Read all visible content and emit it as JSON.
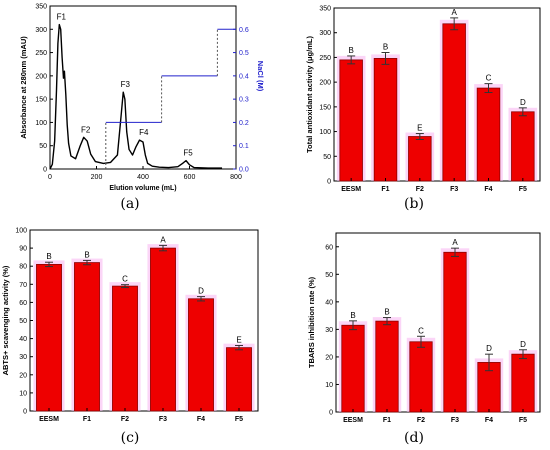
{
  "colors": {
    "bar": "#ee0000",
    "bar_edge": "#8b0000",
    "err": "#333333",
    "glow": "#f7b2f0",
    "axis": "#000000",
    "nacl": "#2222cc"
  },
  "panels": [
    {
      "label": "(a)"
    },
    {
      "label": "(b)"
    },
    {
      "label": "(c)"
    },
    {
      "label": "(d)"
    }
  ],
  "chart_data": [
    {
      "type": "line",
      "xlabel": "Elution volume (mL)",
      "ylabel": "Absorbance at 280nm (mAU)",
      "y2label": "NaCl (M)",
      "xlim": [
        0,
        800
      ],
      "ylim": [
        0,
        350
      ],
      "y2lim": [
        0,
        0.7
      ],
      "xticks": [
        0,
        200,
        400,
        600,
        800
      ],
      "yticks": [
        0,
        50,
        100,
        150,
        200,
        250,
        300,
        350
      ],
      "y2ticks": [
        0.0,
        0.1,
        0.2,
        0.3,
        0.4,
        0.5,
        0.6
      ],
      "absorbance": {
        "x": [
          0,
          10,
          20,
          28,
          34,
          40,
          46,
          52,
          58,
          62,
          68,
          74,
          80,
          90,
          110,
          130,
          145,
          160,
          175,
          195,
          230,
          260,
          290,
          305,
          315,
          322,
          330,
          340,
          355,
          370,
          385,
          400,
          410,
          420,
          440,
          470,
          510,
          550,
          570,
          585,
          600,
          620,
          680,
          740
        ],
        "y": [
          0,
          10,
          60,
          170,
          270,
          310,
          300,
          240,
          195,
          210,
          160,
          95,
          55,
          28,
          22,
          50,
          68,
          60,
          32,
          16,
          12,
          14,
          30,
          110,
          165,
          150,
          80,
          42,
          30,
          48,
          62,
          58,
          30,
          12,
          6,
          4,
          3,
          5,
          12,
          18,
          9,
          3,
          2,
          2
        ]
      },
      "nacl": {
        "x": [
          240,
          240,
          480,
          480,
          720,
          720,
          800
        ],
        "y": [
          0,
          0.2,
          0.2,
          0.4,
          0.4,
          0.6,
          0.6
        ]
      },
      "peaks": [
        {
          "name": "F1",
          "x": 40,
          "y": 310
        },
        {
          "name": "F2",
          "x": 145,
          "y": 68
        },
        {
          "name": "F3",
          "x": 315,
          "y": 165
        },
        {
          "name": "F4",
          "x": 395,
          "y": 62
        },
        {
          "name": "F5",
          "x": 585,
          "y": 18
        }
      ]
    },
    {
      "type": "bar",
      "categories": [
        "EESM",
        "F1",
        "F2",
        "F3",
        "F4",
        "F5"
      ],
      "values": [
        245,
        248,
        90,
        318,
        188,
        140
      ],
      "errors": [
        8,
        12,
        6,
        12,
        9,
        8
      ],
      "letters": [
        "B",
        "B",
        "E",
        "A",
        "C",
        "D"
      ],
      "ylabel": "Total antioxidant activity (μg/mL)",
      "ylim": [
        0,
        350
      ],
      "yticks": [
        0,
        50,
        100,
        150,
        200,
        250,
        300,
        350
      ]
    },
    {
      "type": "bar",
      "categories": [
        "EESM",
        "F1",
        "F2",
        "F3",
        "F4",
        "F5"
      ],
      "values": [
        81,
        82,
        69,
        90,
        62,
        35
      ],
      "errors": [
        1.2,
        1.2,
        0.8,
        1.5,
        1.2,
        1.2
      ],
      "letters": [
        "B",
        "B",
        "C",
        "A",
        "D",
        "E"
      ],
      "ylabel": "ABTS+ scavenging activity (%)",
      "ylim": [
        0,
        100
      ],
      "yticks": [
        0,
        10,
        20,
        30,
        40,
        50,
        60,
        70,
        80,
        90,
        100
      ]
    },
    {
      "type": "bar",
      "categories": [
        "EESM",
        "F1",
        "F2",
        "F3",
        "F4",
        "F5"
      ],
      "values": [
        31.5,
        33,
        25.5,
        58,
        18,
        21
      ],
      "errors": [
        1.6,
        1.3,
        2.0,
        1.5,
        3.0,
        1.6
      ],
      "letters": [
        "B",
        "B",
        "C",
        "A",
        "D",
        "D"
      ],
      "ylabel": "TBARS inhibition rate (%)",
      "ylim": [
        0,
        65
      ],
      "yticks": [
        0,
        10,
        20,
        30,
        40,
        50,
        60
      ]
    }
  ]
}
